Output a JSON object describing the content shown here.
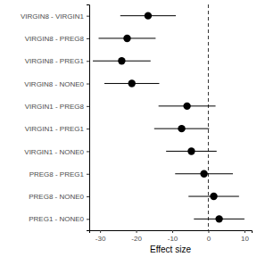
{
  "chart_data": {
    "type": "dot",
    "orientation": "horizontal",
    "categories": [
      "VIRGIN8 - VIRGIN1",
      "VIRGIN8 - PREG8",
      "VIRGIN8 - PREG1",
      "VIRGIN8 - NONE0",
      "VIRGIN1 - PREG8",
      "VIRGIN1 - PREG1",
      "VIRGIN1 - NONE0",
      "PREG8 - PREG1",
      "PREG8 - NONE0",
      "PREG1 - NONE0"
    ],
    "values": [
      -16.7,
      -22.5,
      -24.0,
      -21.2,
      -5.9,
      -7.4,
      -4.7,
      -1.2,
      1.5,
      3.0
    ],
    "errors": [
      7.7,
      7.9,
      8.0,
      7.6,
      7.9,
      7.6,
      7.0,
      8.0,
      7.0,
      7.0
    ],
    "color": "#000000",
    "x_label": "Effect size",
    "xlim": [
      -33,
      12
    ],
    "xticks": [
      -30,
      -20,
      -10,
      0,
      10
    ],
    "vline": 0,
    "grid": false
  }
}
